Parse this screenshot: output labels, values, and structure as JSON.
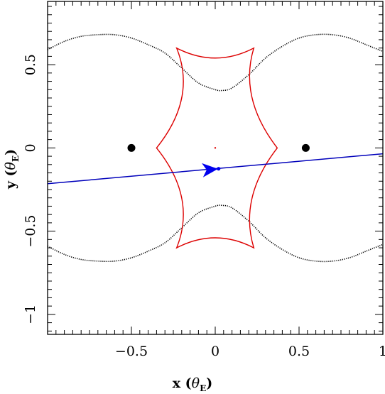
{
  "chart_data": {
    "type": "scatter",
    "title": "",
    "xlabel": "x",
    "xlabel_unit_symbol": "θ",
    "xlabel_unit_sub": "E",
    "ylabel": "y",
    "ylabel_unit_symbol": "θ",
    "ylabel_unit_sub": "E",
    "xlim": [
      -1.0,
      1.0
    ],
    "ylim": [
      -1.12,
      0.88
    ],
    "x_ticks": [
      -0.5,
      0,
      0.5,
      1
    ],
    "x_tick_labels": [
      "−0.5",
      "0",
      "0.5",
      "1"
    ],
    "y_ticks": [
      -1,
      -0.5,
      0,
      0.5
    ],
    "y_tick_labels": [
      "−1",
      "−0.5",
      "0",
      "0.5"
    ],
    "grid": false,
    "colors": {
      "caustic": "#dd0000",
      "critical_curve": "#000000",
      "trajectory": "#0000bb",
      "arrow": "#0000ee",
      "lens": "#000000"
    },
    "lenses": [
      {
        "name": "lens-1",
        "x": -0.5,
        "y": 0.0
      },
      {
        "name": "lens-2",
        "x": 0.54,
        "y": 0.0
      }
    ],
    "critical_curve": {
      "upper": [
        [
          -1.0,
          0.59
        ],
        [
          -0.9,
          0.64
        ],
        [
          -0.8,
          0.67
        ],
        [
          -0.7,
          0.68
        ],
        [
          -0.6,
          0.68
        ],
        [
          -0.5,
          0.66
        ],
        [
          -0.4,
          0.62
        ],
        [
          -0.3,
          0.57
        ],
        [
          -0.2,
          0.48
        ],
        [
          -0.1,
          0.39
        ],
        [
          0.0,
          0.35
        ],
        [
          0.04,
          0.345
        ],
        [
          0.1,
          0.36
        ],
        [
          0.2,
          0.44
        ],
        [
          0.3,
          0.54
        ],
        [
          0.4,
          0.61
        ],
        [
          0.5,
          0.66
        ],
        [
          0.6,
          0.68
        ],
        [
          0.7,
          0.68
        ],
        [
          0.8,
          0.66
        ],
        [
          0.9,
          0.62
        ],
        [
          1.0,
          0.58
        ]
      ],
      "lower": [
        [
          -1.0,
          -0.59
        ],
        [
          -0.9,
          -0.64
        ],
        [
          -0.8,
          -0.67
        ],
        [
          -0.7,
          -0.68
        ],
        [
          -0.6,
          -0.68
        ],
        [
          -0.5,
          -0.66
        ],
        [
          -0.4,
          -0.62
        ],
        [
          -0.3,
          -0.57
        ],
        [
          -0.2,
          -0.48
        ],
        [
          -0.1,
          -0.39
        ],
        [
          0.0,
          -0.35
        ],
        [
          0.04,
          -0.345
        ],
        [
          0.1,
          -0.36
        ],
        [
          0.2,
          -0.44
        ],
        [
          0.3,
          -0.54
        ],
        [
          0.4,
          -0.61
        ],
        [
          0.5,
          -0.66
        ],
        [
          0.6,
          -0.68
        ],
        [
          0.7,
          -0.68
        ],
        [
          0.8,
          -0.66
        ],
        [
          0.9,
          -0.62
        ],
        [
          1.0,
          -0.58
        ]
      ]
    },
    "caustic": {
      "cusps": [
        [
          -0.23,
          0.6
        ],
        [
          0.23,
          0.6
        ],
        [
          0.37,
          0.0
        ],
        [
          0.23,
          -0.6
        ],
        [
          -0.23,
          -0.6
        ],
        [
          -0.35,
          0.0
        ]
      ],
      "fold_midpoints": [
        [
          0.0,
          0.54
        ],
        [
          0.22,
          0.3
        ],
        [
          0.22,
          -0.3
        ],
        [
          0.0,
          -0.54
        ],
        [
          -0.2,
          -0.3
        ],
        [
          -0.2,
          0.3
        ]
      ],
      "center_point": [
        0.0,
        0.0
      ]
    },
    "trajectory": {
      "x": [
        -1.0,
        1.0
      ],
      "y": [
        -0.215,
        -0.035
      ],
      "source_position": [
        0.02,
        -0.125
      ],
      "arrow_position": [
        -0.03,
        -0.13
      ]
    }
  }
}
